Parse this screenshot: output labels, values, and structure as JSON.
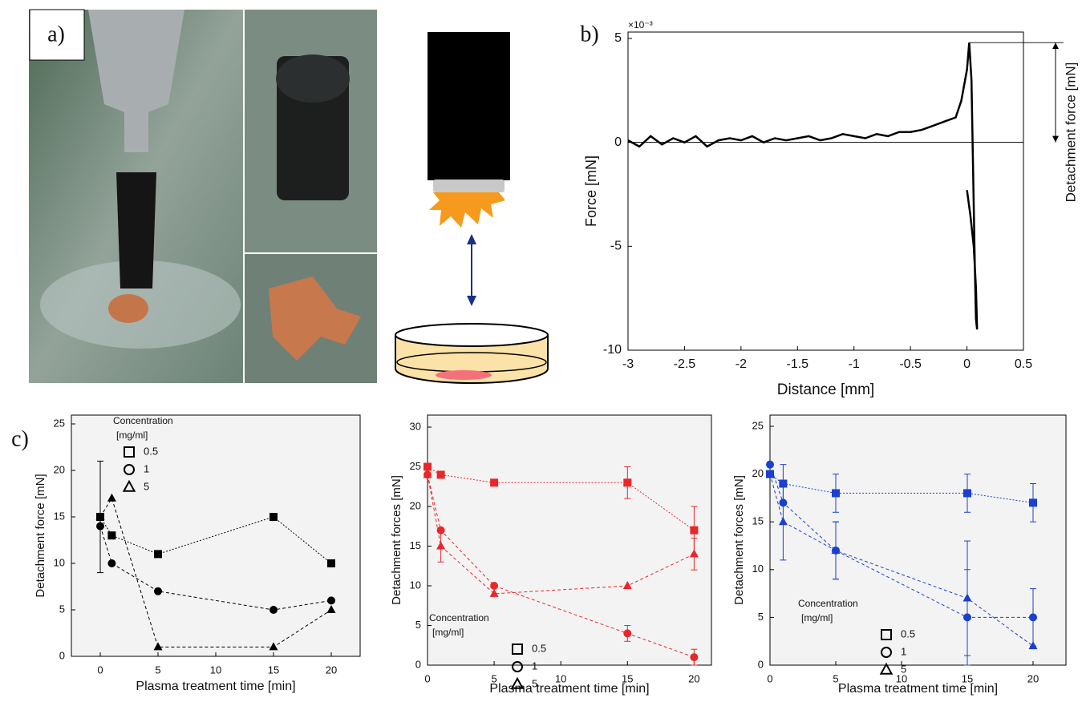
{
  "panel_labels": [
    "a)",
    "b)",
    "c)"
  ],
  "chart_data": [
    {
      "type": "line",
      "x_label": "Distance [mm]",
      "y_label": "Force [mN]",
      "y_multiplier": "×10⁻³",
      "annotation": "Detachment force [mN]",
      "color": "#000000",
      "zero_line": true,
      "x": [
        -3,
        -2.9,
        -2.8,
        -2.7,
        -2.6,
        -2.5,
        -2.4,
        -2.3,
        -2.2,
        -2.1,
        -2.0,
        -1.9,
        -1.8,
        -1.7,
        -1.6,
        -1.5,
        -1.4,
        -1.3,
        -1.2,
        -1.1,
        -1.0,
        -0.9,
        -0.8,
        -0.7,
        -0.6,
        -0.5,
        -0.4,
        -0.3,
        -0.2,
        -0.1,
        -0.05,
        0,
        0.02,
        0.04,
        0.05,
        0.06,
        0.07,
        0.08,
        0.09,
        0.08,
        0.06,
        0.03,
        0.0
      ],
      "values": [
        0.1,
        -0.2,
        0.3,
        -0.1,
        0.2,
        0,
        0.3,
        -0.2,
        0.1,
        0.2,
        0.1,
        0.3,
        0,
        0.2,
        0.1,
        0.2,
        0.3,
        0.1,
        0.2,
        0.4,
        0.3,
        0.2,
        0.4,
        0.3,
        0.5,
        0.5,
        0.6,
        0.8,
        1.0,
        1.2,
        2,
        3.5,
        4.8,
        3,
        0,
        -3,
        -6,
        -8.5,
        -9,
        -7,
        -5,
        -3.5,
        -2.3
      ],
      "xlim": [
        -3,
        0.5
      ],
      "xticks": [
        -3,
        -2.5,
        -2,
        -1.5,
        -1,
        -0.5,
        0,
        0.5
      ],
      "ylim": [
        -10,
        5
      ],
      "yticks": [
        -10,
        -5,
        0,
        5
      ]
    },
    {
      "type": "line",
      "x_label": "Plasma treatment time [min]",
      "y_label": "Detachment force [mN]",
      "legend": "upper left",
      "legend_title": [
        "Concentration",
        "[mg/ml]"
      ],
      "x": [
        0,
        1,
        5,
        15,
        20
      ],
      "xlim": [
        -2.5,
        22.5
      ],
      "xticks": [
        0,
        5,
        10,
        15,
        20
      ],
      "ylim": [
        0,
        25
      ],
      "yticks": [
        0,
        5,
        10,
        15,
        20,
        25
      ],
      "series": [
        {
          "name": "0.5",
          "marker": "square",
          "color": "#000000",
          "values": [
            15,
            13,
            11,
            15,
            10
          ],
          "errors": [
            null,
            null,
            null,
            null,
            null
          ]
        },
        {
          "name": "1",
          "marker": "circle",
          "color": "#000000",
          "values": [
            14,
            10,
            7,
            5,
            6
          ],
          "errors": [
            null,
            null,
            null,
            null,
            null
          ]
        },
        {
          "name": "5",
          "marker": "triangle",
          "color": "#000000",
          "values": [
            15,
            17,
            1,
            1,
            5
          ],
          "errors": [
            6,
            null,
            null,
            null,
            null
          ]
        }
      ]
    },
    {
      "type": "line",
      "x_label": "Plasma treatment time [min]",
      "y_label": "Detachment forces [mN]",
      "legend": "lower left",
      "legend_title": [
        "Concentration",
        "[mg/ml]"
      ],
      "x": [
        0,
        1,
        5,
        15,
        20
      ],
      "xlim": [
        0,
        21.3
      ],
      "xticks": [
        0,
        5,
        10,
        15,
        20
      ],
      "ylim": [
        0,
        30
      ],
      "yticks": [
        0,
        5,
        10,
        15,
        20,
        25,
        30
      ],
      "series": [
        {
          "name": "0.5",
          "marker": "square",
          "color": "#e8272a",
          "values": [
            25,
            24,
            23,
            23,
            17
          ],
          "errors": [
            null,
            null,
            null,
            2,
            3
          ]
        },
        {
          "name": "1",
          "marker": "circle",
          "color": "#e8272a",
          "values": [
            24,
            17,
            10,
            4,
            1
          ],
          "errors": [
            null,
            null,
            null,
            1,
            1
          ]
        },
        {
          "name": "5",
          "marker": "triangle",
          "color": "#e8272a",
          "values": [
            24,
            15,
            9,
            10,
            14
          ],
          "errors": [
            null,
            2,
            null,
            null,
            2
          ]
        }
      ]
    },
    {
      "type": "line",
      "x_label": "Plasma treatment time [min]",
      "y_label": "Detachment forces [mN]",
      "legend": "lower left",
      "legend_title": [
        "Concentration",
        "[mg/ml]"
      ],
      "x": [
        0,
        1,
        5,
        15,
        20
      ],
      "xlim": [
        0,
        22.5
      ],
      "xticks": [
        0,
        5,
        10,
        15,
        20
      ],
      "ylim": [
        0,
        25
      ],
      "yticks": [
        0,
        5,
        10,
        15,
        20,
        25
      ],
      "series": [
        {
          "name": "0.5",
          "marker": "square",
          "color": "#1b3fd0",
          "values": [
            20,
            19,
            18,
            18,
            17
          ],
          "errors": [
            null,
            2,
            2,
            2,
            2
          ]
        },
        {
          "name": "1",
          "marker": "circle",
          "color": "#1b3fd0",
          "values": [
            21,
            17,
            12,
            5,
            5
          ],
          "errors": [
            null,
            null,
            3,
            5,
            3
          ]
        },
        {
          "name": "5",
          "marker": "triangle",
          "color": "#1b3fd0",
          "values": [
            20,
            15,
            12,
            7,
            2
          ],
          "errors": [
            null,
            4,
            3,
            6,
            null
          ]
        }
      ]
    }
  ]
}
